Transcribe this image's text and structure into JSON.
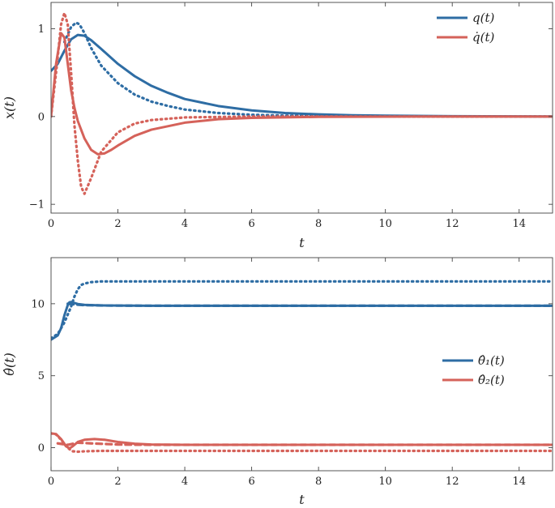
{
  "colors": {
    "blue": "#2E6DA4",
    "red": "#D5625A"
  },
  "chart_data": [
    {
      "type": "line",
      "xlabel": "t",
      "ylabel": "x(t)",
      "xlim": [
        0,
        15
      ],
      "ylim": [
        -1.1,
        1.3
      ],
      "xticks": [
        0,
        2,
        4,
        6,
        8,
        10,
        12,
        14
      ],
      "yticks": [
        -1,
        0,
        1
      ],
      "xtick_labels": [
        "0",
        "2",
        "4",
        "6",
        "8",
        "10",
        "12",
        "14"
      ],
      "ytick_labels": [
        "−1",
        "0",
        "1"
      ],
      "legend_position": "top-right",
      "grid": false,
      "series": [
        {
          "name": "q(t)",
          "color": "blue",
          "style": "solid",
          "x": [
            0,
            0.2,
            0.4,
            0.6,
            0.8,
            1,
            1.2,
            1.5,
            2,
            2.5,
            3,
            3.5,
            4,
            5,
            6,
            7,
            8,
            9,
            10,
            12,
            15
          ],
          "y": [
            0.52,
            0.6,
            0.75,
            0.88,
            0.93,
            0.92,
            0.87,
            0.77,
            0.6,
            0.46,
            0.35,
            0.27,
            0.2,
            0.12,
            0.07,
            0.04,
            0.025,
            0.015,
            0.01,
            0.004,
            0.001
          ]
        },
        {
          "name": "",
          "color": "blue",
          "style": "dotted",
          "x": [
            0.4,
            0.6,
            0.75,
            0.85,
            1,
            1.2,
            1.5,
            2,
            2.5,
            3,
            3.5,
            4,
            5,
            6,
            7,
            8,
            10,
            12,
            15
          ],
          "y": [
            0.85,
            1.02,
            1.07,
            1.05,
            0.95,
            0.78,
            0.58,
            0.38,
            0.25,
            0.17,
            0.12,
            0.08,
            0.04,
            0.02,
            0.01,
            0.006,
            0.002,
            0.001,
            0
          ]
        },
        {
          "name": "q̇(t)",
          "color": "red",
          "style": "solid",
          "x": [
            0,
            0.15,
            0.3,
            0.4,
            0.5,
            0.6,
            0.7,
            0.8,
            1,
            1.2,
            1.4,
            1.6,
            1.8,
            2,
            2.5,
            3,
            4,
            5,
            6,
            8,
            10,
            15
          ],
          "y": [
            0,
            0.6,
            0.95,
            0.9,
            0.6,
            0.3,
            0.1,
            -0.05,
            -0.25,
            -0.38,
            -0.43,
            -0.42,
            -0.38,
            -0.33,
            -0.22,
            -0.15,
            -0.07,
            -0.03,
            -0.015,
            -0.004,
            -0.001,
            0
          ]
        },
        {
          "name": "",
          "color": "red",
          "style": "dotted",
          "x": [
            0,
            0.15,
            0.3,
            0.4,
            0.5,
            0.6,
            0.7,
            0.8,
            0.9,
            1,
            1.2,
            1.5,
            2,
            2.5,
            3,
            4,
            5,
            6,
            8,
            10,
            15
          ],
          "y": [
            0,
            0.5,
            1.05,
            1.18,
            1.05,
            0.5,
            -0.1,
            -0.5,
            -0.8,
            -0.88,
            -0.7,
            -0.4,
            -0.18,
            -0.08,
            -0.04,
            -0.01,
            -0.005,
            0,
            0,
            0,
            0
          ]
        }
      ]
    },
    {
      "type": "line",
      "xlabel": "t",
      "ylabel": "θ̂(t)",
      "xlim": [
        0,
        15
      ],
      "ylim": [
        -1.6,
        13.2
      ],
      "xticks": [
        0,
        2,
        4,
        6,
        8,
        10,
        12,
        14
      ],
      "yticks": [
        0,
        5,
        10
      ],
      "xtick_labels": [
        "0",
        "2",
        "4",
        "6",
        "8",
        "10",
        "12",
        "14"
      ],
      "ytick_labels": [
        "0",
        "5",
        "10"
      ],
      "legend_position": "center-right",
      "grid": false,
      "series": [
        {
          "name": "θ̂₁(t)",
          "color": "blue",
          "style": "solid",
          "x": [
            0,
            0.2,
            0.3,
            0.4,
            0.5,
            0.55,
            0.6,
            0.7,
            0.8,
            1,
            1.5,
            2,
            3,
            15
          ],
          "y": [
            7.5,
            7.8,
            8.3,
            9.2,
            9.9,
            10.1,
            10.12,
            10.05,
            9.98,
            9.92,
            9.88,
            9.87,
            9.86,
            9.86
          ]
        },
        {
          "name": "",
          "color": "blue",
          "style": "dotted",
          "x": [
            0,
            0.2,
            0.4,
            0.6,
            0.7,
            0.8,
            0.9,
            1,
            1.2,
            1.5,
            2,
            3,
            15
          ],
          "y": [
            7.6,
            7.9,
            8.7,
            9.8,
            10.5,
            11,
            11.3,
            11.4,
            11.5,
            11.55,
            11.55,
            11.55,
            11.55
          ]
        },
        {
          "name": "",
          "color": "blue",
          "style": "dashed",
          "x": [
            0.5,
            0.7,
            1,
            1.5,
            2,
            3,
            15
          ],
          "y": [
            10.0,
            9.95,
            9.9,
            9.88,
            9.87,
            9.86,
            9.86
          ]
        },
        {
          "name": "θ̂₂(t)",
          "color": "red",
          "style": "solid",
          "x": [
            0,
            0.15,
            0.3,
            0.45,
            0.55,
            0.65,
            0.8,
            1,
            1.3,
            1.6,
            2,
            2.5,
            3,
            4,
            15
          ],
          "y": [
            1.0,
            0.95,
            0.6,
            0.1,
            -0.05,
            0.1,
            0.4,
            0.55,
            0.6,
            0.55,
            0.4,
            0.28,
            0.22,
            0.2,
            0.2
          ]
        },
        {
          "name": "",
          "color": "red",
          "style": "dotted",
          "x": [
            0,
            0.15,
            0.3,
            0.45,
            0.55,
            0.65,
            0.8,
            1,
            1.5,
            2,
            3,
            15
          ],
          "y": [
            1.0,
            0.92,
            0.55,
            0.1,
            -0.1,
            -0.25,
            -0.28,
            -0.25,
            -0.22,
            -0.22,
            -0.22,
            -0.22
          ]
        },
        {
          "name": "",
          "color": "red",
          "style": "dashed",
          "x": [
            0.2,
            0.5,
            0.6,
            0.8,
            1.2,
            2,
            3,
            15
          ],
          "y": [
            0.3,
            0.2,
            0.25,
            0.35,
            0.3,
            0.22,
            0.2,
            0.2
          ]
        }
      ]
    }
  ]
}
